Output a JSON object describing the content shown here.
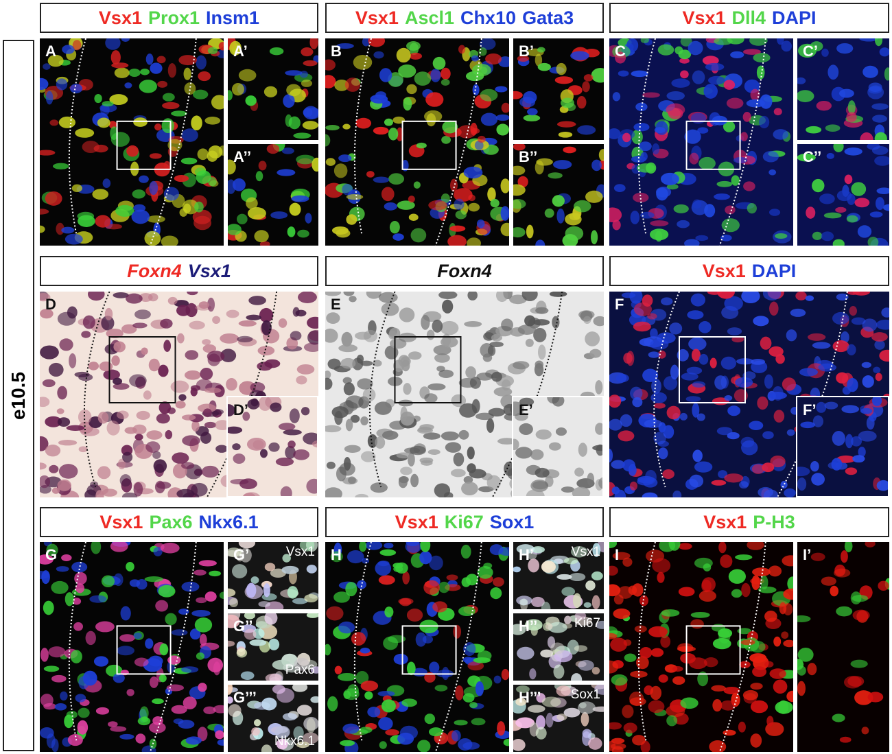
{
  "side_label": "e10.5",
  "panels": [
    {
      "label": "A",
      "italic": false,
      "header": [
        {
          "text": "Vsx1",
          "color": "#ee2a24"
        },
        {
          "text": "Prox1",
          "color": "#53d64a"
        },
        {
          "text": "Insm1",
          "color": "#1e3fd8"
        }
      ],
      "insets": [
        {
          "label": "A’"
        },
        {
          "label": "A’’"
        }
      ]
    },
    {
      "label": "B",
      "italic": false,
      "header": [
        {
          "text": "Vsx1",
          "color": "#ee2a24"
        },
        {
          "text": "Ascl1",
          "color": "#53d64a"
        },
        {
          "text": "Chx10",
          "color": "#1e3fd8"
        },
        {
          "text": "Gata3",
          "color": "#1e3fd8"
        }
      ],
      "insets": [
        {
          "label": "B’"
        },
        {
          "label": "B’’"
        }
      ]
    },
    {
      "label": "C",
      "italic": false,
      "header": [
        {
          "text": "Vsx1",
          "color": "#ee2a24"
        },
        {
          "text": "Dll4",
          "color": "#53d64a"
        },
        {
          "text": "DAPI",
          "color": "#1e3fd8"
        }
      ],
      "insets": [
        {
          "label": "C’"
        },
        {
          "label": "C’’"
        }
      ]
    },
    {
      "label": "D",
      "italic": true,
      "header": [
        {
          "text": "Foxn4",
          "color": "#ee2a24"
        },
        {
          "text": "Vsx1",
          "color": "#1c1c78"
        }
      ],
      "insets": [
        {
          "label": "D’"
        }
      ]
    },
    {
      "label": "E",
      "italic": true,
      "header": [
        {
          "text": "Foxn4",
          "color": "#111111"
        }
      ],
      "insets": [
        {
          "label": "E’"
        }
      ]
    },
    {
      "label": "F",
      "italic": false,
      "header": [
        {
          "text": "Vsx1",
          "color": "#ee2a24"
        },
        {
          "text": "DAPI",
          "color": "#1e3fd8"
        }
      ],
      "insets": [
        {
          "label": "F’"
        }
      ]
    },
    {
      "label": "G",
      "italic": false,
      "header": [
        {
          "text": "Vsx1",
          "color": "#ee2a24"
        },
        {
          "text": "Pax6",
          "color": "#53d64a"
        },
        {
          "text": "Nkx6.1",
          "color": "#1e3fd8"
        }
      ],
      "insets": [
        {
          "label": "G’",
          "marker": "Vsx1"
        },
        {
          "label": "G’’",
          "marker": "Pax6"
        },
        {
          "label": "G’’’",
          "marker": "Nkx6.1"
        }
      ]
    },
    {
      "label": "H",
      "italic": false,
      "header": [
        {
          "text": "Vsx1",
          "color": "#ee2a24"
        },
        {
          "text": "Ki67",
          "color": "#53d64a"
        },
        {
          "text": "Sox1",
          "color": "#1e3fd8"
        }
      ],
      "insets": [
        {
          "label": "H’",
          "marker": "Vsx1"
        },
        {
          "label": "H’’",
          "marker": "Ki67"
        },
        {
          "label": "H’’’",
          "marker": "Sox1"
        }
      ]
    },
    {
      "label": "I",
      "italic": false,
      "header": [
        {
          "text": "Vsx1",
          "color": "#ee2a24"
        },
        {
          "text": "P-H3",
          "color": "#53d64a"
        }
      ],
      "insets": [
        {
          "label": "I’"
        }
      ]
    }
  ]
}
